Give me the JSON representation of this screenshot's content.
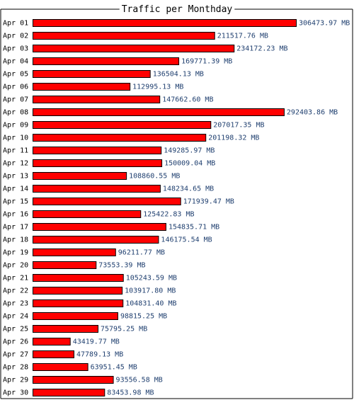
{
  "chart_data": {
    "type": "bar",
    "orientation": "horizontal",
    "title": "Traffic per Monthday",
    "unit": "MB",
    "xlabel": "",
    "ylabel": "",
    "grid": false,
    "categories": [
      "Apr 01",
      "Apr 02",
      "Apr 03",
      "Apr 04",
      "Apr 05",
      "Apr 06",
      "Apr 07",
      "Apr 08",
      "Apr 09",
      "Apr 10",
      "Apr 11",
      "Apr 12",
      "Apr 13",
      "Apr 14",
      "Apr 15",
      "Apr 16",
      "Apr 17",
      "Apr 18",
      "Apr 19",
      "Apr 20",
      "Apr 21",
      "Apr 22",
      "Apr 23",
      "Apr 24",
      "Apr 25",
      "Apr 26",
      "Apr 27",
      "Apr 28",
      "Apr 29",
      "Apr 30"
    ],
    "values": [
      306473.97,
      211517.76,
      234172.23,
      169771.39,
      136504.13,
      112995.13,
      147662.6,
      292403.86,
      207017.35,
      201198.32,
      149285.97,
      150009.04,
      108860.55,
      148234.65,
      171939.47,
      125422.83,
      154835.71,
      146175.54,
      96211.77,
      73553.39,
      105243.59,
      103917.8,
      104831.4,
      98815.25,
      75795.25,
      43419.77,
      47789.13,
      63951.45,
      93556.58,
      83453.98
    ],
    "value_labels": [
      "306473.97 MB",
      "211517.76 MB",
      "234172.23 MB",
      "169771.39 MB",
      "136504.13 MB",
      "112995.13 MB",
      "147662.60 MB",
      "292403.86 MB",
      "207017.35 MB",
      "201198.32 MB",
      "149285.97 MB",
      "150009.04 MB",
      "108860.55 MB",
      "148234.65 MB",
      "171939.47 MB",
      "125422.83 MB",
      "154835.71 MB",
      "146175.54 MB",
      "96211.77 MB",
      "73553.39 MB",
      "105243.59 MB",
      "103917.80 MB",
      "104831.40 MB",
      "98815.25 MB",
      "75795.25 MB",
      "43419.77 MB",
      "47789.13 MB",
      "63951.45 MB",
      "93556.58 MB",
      "83453.98 MB"
    ],
    "colors": {
      "bar": "#ff0000",
      "bar_border": "#000000",
      "value_text": "#1f3f6f",
      "frame": "#000000",
      "background": "#ffffff"
    }
  }
}
